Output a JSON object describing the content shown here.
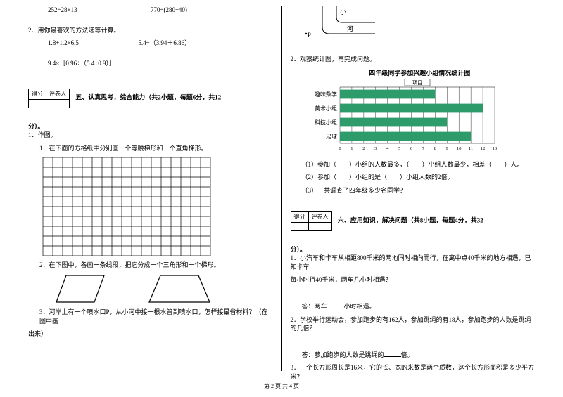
{
  "left": {
    "calc1": "252÷28×13",
    "calc2": "770÷(280÷40)",
    "q2": "2．用你最喜欢的方法递等计算。",
    "q2a": "1.8+1.2×6.5",
    "q2b": "5.4÷（3.94＋6.86）",
    "q2c": "9.4×［0.96÷（5.4÷0.9）］",
    "section5": "五、认真思考，综合能力（共2小题，每题6分，共12",
    "fen": "分）。",
    "q5_1": "1．作图。",
    "q5_1a": "1．在下面的方格纸中分别画一个等腰梯形和一个直角梯形。",
    "q5_1b": "2．在下图中，各画一条线段，把它分成一个三角形和一个梯形。",
    "q5_1c": "3．河岸上有一个喷水口P，从小河中接一根水管到喷水口，怎样接最省材料？（在图中画",
    "q5_1c2": "出来）",
    "grid": {
      "cols": 17,
      "rows": 10,
      "cell": 14,
      "stroke": "#000000"
    },
    "shape_stroke": "#000000"
  },
  "right": {
    "river": {
      "label_small": "小",
      "label_river": "河",
      "label_p": "P",
      "stroke": "#000000"
    },
    "q2": "2．观察统计图，再完成问题。",
    "chart": {
      "title": "四年级同学参加兴趣小组情况统计图",
      "legend": "项目",
      "categories": [
        "趣味数学",
        "美术小组",
        "科技小组",
        "足球"
      ],
      "values": [
        8,
        12,
        9,
        11
      ],
      "xmax": 13,
      "xticks": [
        0,
        1,
        2,
        3,
        4,
        5,
        6,
        7,
        8,
        9,
        10,
        11,
        12,
        13
      ],
      "bar_color": "#2e9b6b",
      "axis_color": "#000000",
      "bg": "#ffffff",
      "label_fontsize": 8
    },
    "q2_1": "（1）参加（　　）小组的人数最多，（　　）小组人数最少，相差（　　）人。",
    "q2_2": "（2）参加（　　）小组的是（　　）小组人数的2倍。",
    "q2_3": "（3）一共调查了四年级多少名同学？",
    "section6": "六、应用知识，解决问题（共8小题，每题4分，共32",
    "fen": "分）。",
    "q6_1a": "1．小汽车和卡车从相距800千米的两地同时相向而行，在离中点40千米的地方相遇，已知卡车",
    "q6_1b": "每小时行40千米，两车几小时相遇？",
    "ans1": "答：两车____小时相遇。",
    "q6_2": "2．学校举行运动会，参加跑步的有162人，参加跳绳的有18人，参加跑步的人数是跳绳的几倍？",
    "ans2": "答：参加跑步的人数是跳绳的____倍。",
    "q6_3": "3．一个长方形周长是16米，它的长、宽的米数是两个质数，这个长方形面积是多少平方米？"
  },
  "scorebox": {
    "c1": "得分",
    "c2": "评卷人"
  },
  "footer": "第 2 页 共 4 页"
}
